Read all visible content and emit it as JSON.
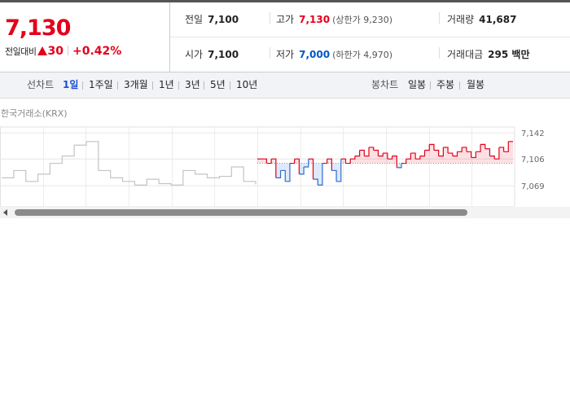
{
  "quote": {
    "price": "7,130",
    "change_label": "전일대비",
    "change": "30",
    "change_rate": "+0.42%"
  },
  "info": {
    "prev_close": {
      "label": "전일",
      "value": "7,100"
    },
    "high": {
      "label": "고가",
      "value": "7,130",
      "sub": "(상한가 9,230)"
    },
    "volume": {
      "label": "거래량",
      "value": "41,687"
    },
    "open": {
      "label": "시가",
      "value": "7,100"
    },
    "low": {
      "label": "저가",
      "value": "7,000",
      "sub": "(하한가 4,970)"
    },
    "amount": {
      "label": "거래대금",
      "value": "295 백만"
    }
  },
  "tabs": {
    "line_label": "선차트",
    "line_periods": [
      "1일",
      "1주일",
      "3개월",
      "1년",
      "3년",
      "5년",
      "10년"
    ],
    "active_index": 0,
    "candle_label": "봉차트",
    "candle_periods": [
      "일봉",
      "주봉",
      "월봉"
    ]
  },
  "chart": {
    "source": "한국거래소(KRX)"
  },
  "chart_data": {
    "type": "line",
    "baseline": 7100,
    "y_ticks": [
      "7,142",
      "7,106",
      "7,069"
    ],
    "y_tick_values": [
      7142,
      7106,
      7069
    ],
    "ylim": [
      7040,
      7150
    ],
    "colors": {
      "up": "#e3001b",
      "down": "#2b6cd4",
      "past": "#c4c4c4"
    },
    "past_values": [
      7080,
      7090,
      7075,
      7085,
      7100,
      7110,
      7125,
      7130,
      7090,
      7080,
      7075,
      7070,
      7078,
      7072,
      7070,
      7090,
      7085,
      7080,
      7082,
      7095,
      7075,
      7071
    ],
    "values": [
      7106,
      7106,
      7100,
      7106,
      7080,
      7090,
      7075,
      7100,
      7106,
      7085,
      7095,
      7106,
      7078,
      7070,
      7100,
      7106,
      7090,
      7075,
      7106,
      7100,
      7106,
      7110,
      7118,
      7110,
      7122,
      7118,
      7110,
      7114,
      7106,
      7110,
      7094,
      7100,
      7106,
      7114,
      7106,
      7110,
      7118,
      7126,
      7118,
      7110,
      7122,
      7114,
      7110,
      7116,
      7122,
      7116,
      7108,
      7116,
      7126,
      7120,
      7110,
      7106,
      7122,
      7116,
      7130,
      7130
    ]
  }
}
